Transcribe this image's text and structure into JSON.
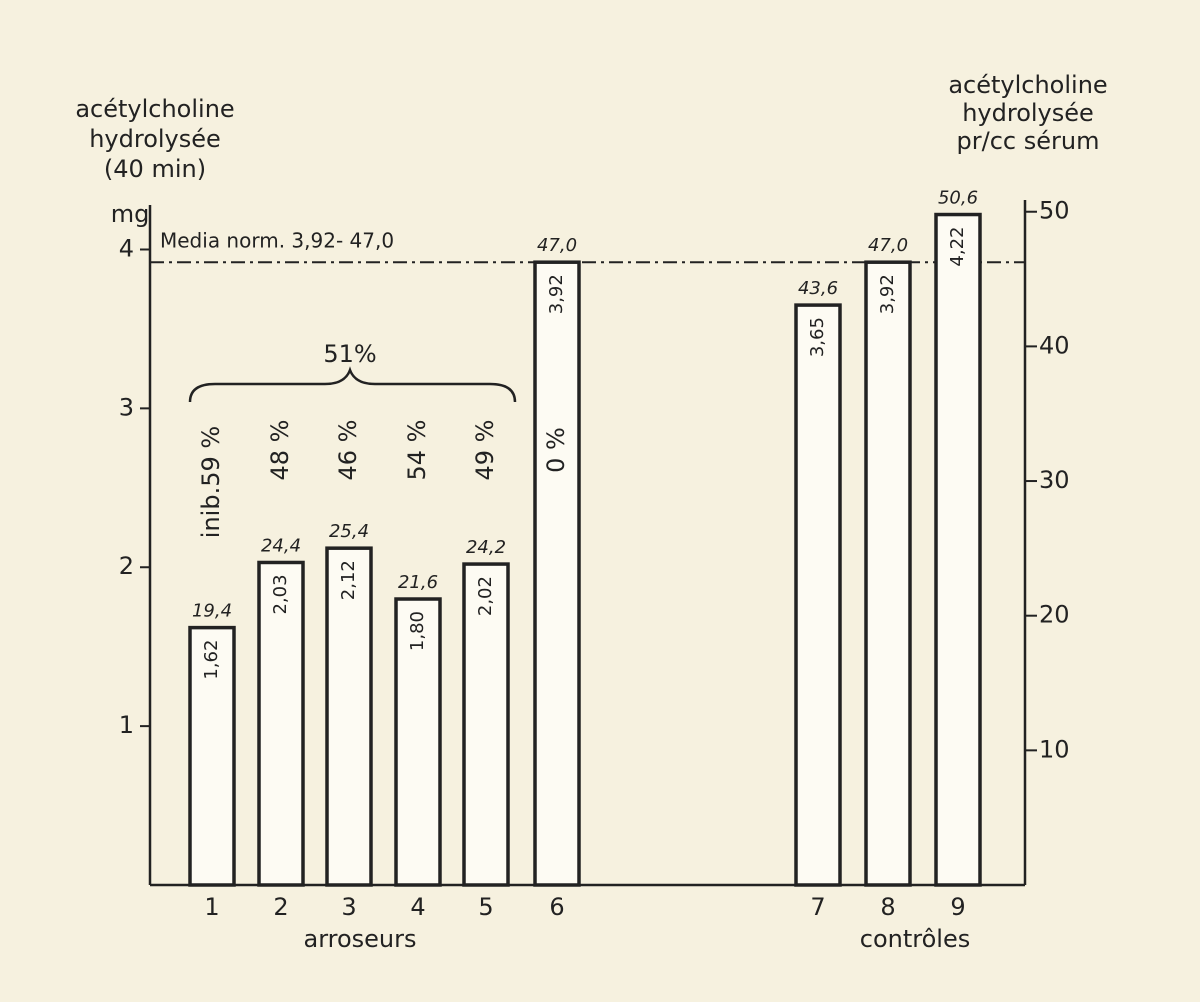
{
  "chart_data": {
    "type": "bar",
    "y_axis_title": [
      "acétylcholine",
      "hydrolysée",
      "(40 min)"
    ],
    "y_unit": "mg",
    "y2_axis_title": [
      "acétylcholine",
      "hydrolysée",
      "pr/cc sérum"
    ],
    "categories": [
      "1",
      "2",
      "3",
      "4",
      "5",
      "6",
      "7",
      "8",
      "9"
    ],
    "values": [
      1.62,
      2.03,
      2.12,
      1.8,
      2.02,
      3.92,
      3.65,
      3.92,
      4.22
    ],
    "value_labels": [
      "1,62",
      "2,03",
      "2,12",
      "1,80",
      "2,02",
      "3,92",
      "3,65",
      "3,92",
      "4,22"
    ],
    "values_y2": [
      19.4,
      24.4,
      25.4,
      21.6,
      24.2,
      47.0,
      43.6,
      47.0,
      50.6
    ],
    "value_labels_y2": [
      "19,4",
      "24,4",
      "25,4",
      "21,6",
      "24,2",
      "47,0",
      "43,6",
      "47,0",
      "50,6"
    ],
    "inhibition_labels": [
      "inib.59 %",
      "48 %",
      "46 %",
      "54 %",
      "49 %",
      "0 %",
      null,
      null,
      null
    ],
    "group_annotation": "51%",
    "groups": [
      "arroseurs",
      "contrôles"
    ],
    "reference": {
      "value": 3.92,
      "label": "Media norm. 3,92- 47,0"
    },
    "color": "#fdfbf3",
    "ylim": [
      0,
      4.28
    ],
    "yticks": [
      1,
      2,
      3,
      4
    ],
    "y2lim": [
      0,
      50.5
    ],
    "y2ticks": [
      10,
      20,
      30,
      40,
      50
    ]
  }
}
